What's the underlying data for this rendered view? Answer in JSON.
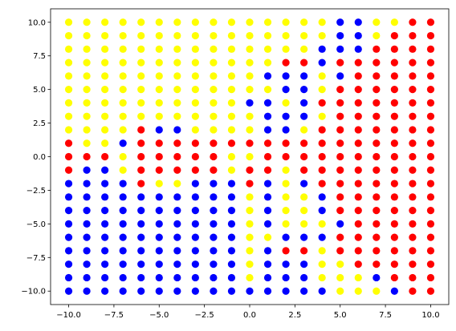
{
  "chart_data": {
    "type": "scatter",
    "title": "",
    "xlabel": "",
    "ylabel": "",
    "xlim": [
      -11,
      11
    ],
    "ylim": [
      -11,
      11
    ],
    "grid": false,
    "legend": "none",
    "x_ticks": [
      -10,
      -7.5,
      -5,
      -2.5,
      0,
      2.5,
      5,
      7.5,
      10
    ],
    "x_tick_labels": [
      "−10.0",
      "−7.5",
      "−5.0",
      "−2.5",
      "0.0",
      "2.5",
      "5.0",
      "7.5",
      "10.0"
    ],
    "y_ticks": [
      10,
      7.5,
      5,
      2.5,
      0,
      -2.5,
      -5,
      -7.5,
      -10
    ],
    "y_tick_labels": [
      "10.0",
      "7.5",
      "5.0",
      "2.5",
      "0.0",
      "−2.5",
      "−5.0",
      "−7.5",
      "−10.0"
    ],
    "x": [
      -10,
      -9,
      -8,
      -7,
      -6,
      -5,
      -4,
      -3,
      -2,
      -1,
      0,
      1,
      2,
      3,
      4,
      5,
      6,
      7,
      8,
      9,
      10
    ],
    "y": [
      10,
      9,
      8,
      7,
      6,
      5,
      4,
      3,
      2,
      1,
      0,
      -1,
      -2,
      -3,
      -4,
      -5,
      -6,
      -7,
      -8,
      -9,
      -10
    ],
    "color_key": {
      "Y": "#ffff00",
      "B": "#0000ff",
      "R": "#ff0000"
    },
    "grid_colors": [
      "YYYYYYYYYYYYYYYBBYYRR",
      "YYYYYYYYYYYYYYYBBYRRR",
      "YYYYYYYYYYYYYYBBBRRRR",
      "YYYYYYYYYYYYRRBRRRRRR",
      "YYYYYYYYYYYBBBYBRRRRR",
      "YYYYYYYYYYYYBBYRRRRRR",
      "YYYYYYYYYYBBYBRRRRRRR",
      "YYYYYYYYYYYBBBYRRRRRR",
      "YYYYRBBYYYYBBYRRRRRRR",
      "RYYBRRRRRRRRRRRRRRRRR",
      "RRRYRRRRRYYRRRRRRRRRR",
      "RBBYRRRRRYRRYRRRRRRRR",
      "BBBBRYYBBBRBYBRRRRRRR",
      "BBBBBBBBBBYBYYBRRRRRR",
      "BBBBBBBBBBYBYYBRRRRRR",
      "BBBBBBBBBBYBYYYBRRRRR",
      "BBBBBBBBBBYYBBBRRRRRR",
      "BBBBBBBBBBYBRRYRRRRRR",
      "BBBBBBBBBBYBBBYYRRRRR",
      "BBBBBBBBBBYBBBYYYBRRR",
      "BBBBBBBBBBBBBBBYYYBRR"
    ]
  }
}
